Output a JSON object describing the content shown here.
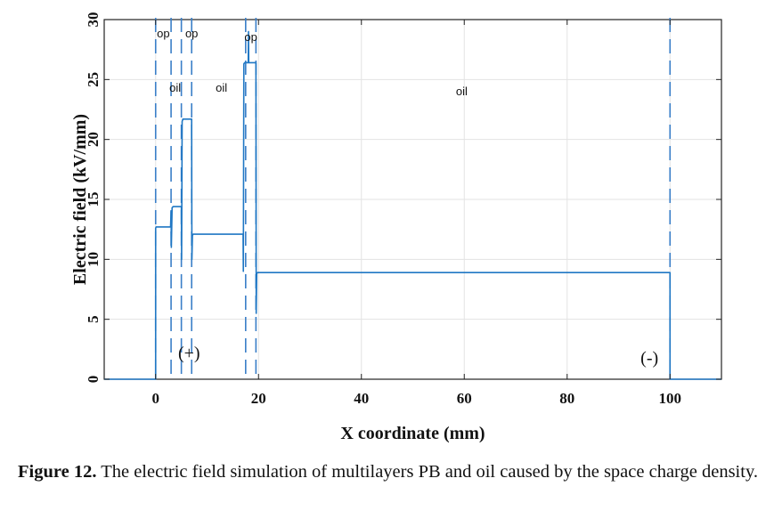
{
  "chart_data": {
    "type": "line",
    "title": "",
    "xlabel": "X coordinate (mm)",
    "ylabel": "Electric field (kV/mm)",
    "xlim": [
      -10,
      110
    ],
    "ylim": [
      0,
      30
    ],
    "xticks": [
      0,
      20,
      40,
      60,
      80,
      100
    ],
    "yticks": [
      0,
      5,
      10,
      15,
      20,
      25,
      30
    ],
    "grid": true,
    "series": [
      {
        "name": "",
        "color": "#1f77c4",
        "x": [
          -10,
          0,
          0,
          0.1,
          2.9,
          3.0,
          3.05,
          3.2,
          3.4,
          5.0,
          5.05,
          5.15,
          5.3,
          7.0,
          7.05,
          7.15,
          7.3,
          17.0,
          17.05,
          17.15,
          17.3,
          18.0,
          18.05,
          18.1,
          19.5,
          19.55,
          19.65,
          19.8,
          100.0,
          100.0,
          110
        ],
        "y": [
          0,
          0,
          12.6,
          12.7,
          12.7,
          14.0,
          11.0,
          14.3,
          14.4,
          14.4,
          10.0,
          21.5,
          21.7,
          21.7,
          10.0,
          12.0,
          12.1,
          12.1,
          9.0,
          26.3,
          26.4,
          26.4,
          29.0,
          26.4,
          26.4,
          5.5,
          8.8,
          8.9,
          8.9,
          0,
          0
        ]
      }
    ],
    "region_boundaries_mm": [
      0,
      3,
      5,
      7,
      17.5,
      19.5,
      100
    ],
    "region_labels": [
      {
        "text": "op",
        "x": 1.5,
        "y": 28.5
      },
      {
        "text": "op",
        "x": 7.0,
        "y": 28.5
      },
      {
        "text": "op",
        "x": 18.5,
        "y": 28.2
      },
      {
        "text": "oil",
        "x": 3.8,
        "y": 24.0
      },
      {
        "text": "oil",
        "x": 12.8,
        "y": 24.0
      },
      {
        "text": "oil",
        "x": 59.5,
        "y": 23.7
      }
    ],
    "annotations": [
      {
        "text": "(+)",
        "x": 6.5,
        "y": 1.7
      },
      {
        "text": "(-)",
        "x": 96.0,
        "y": 1.3
      }
    ]
  },
  "caption": {
    "label": "Figure 12.",
    "text": " The electric field simulation of multilayers PB and oil caused by the space charge density."
  }
}
